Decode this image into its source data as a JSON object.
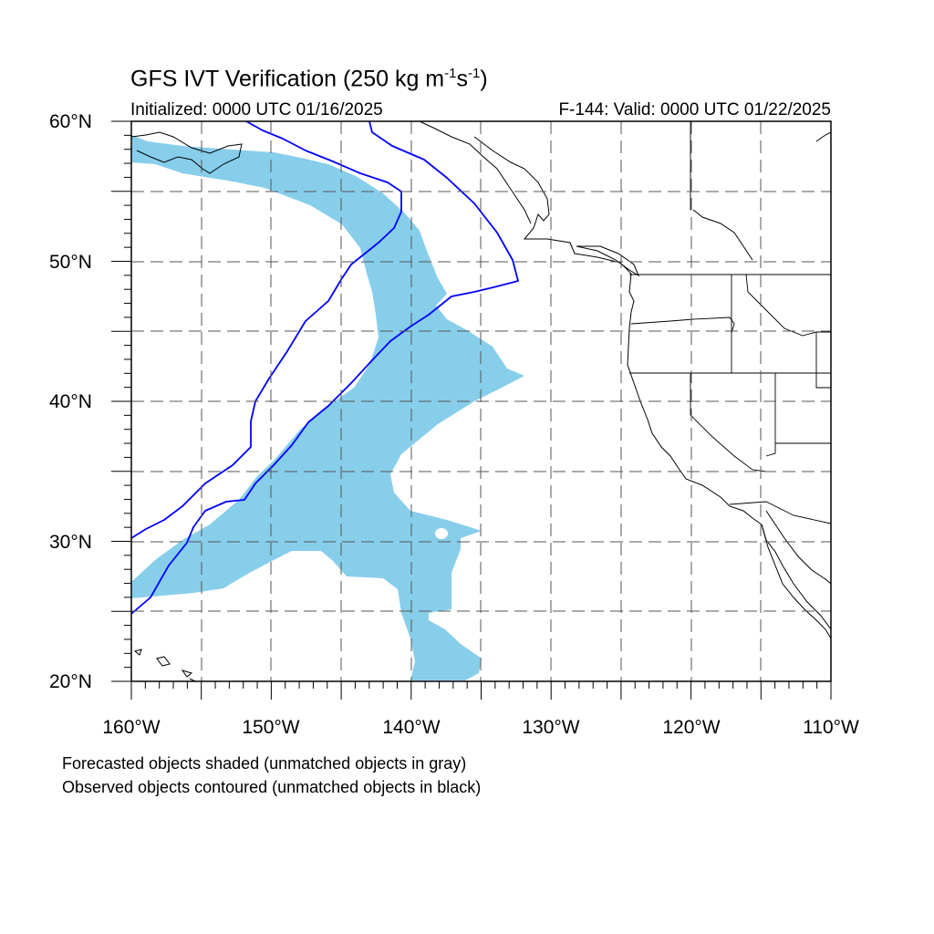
{
  "header": {
    "title_main": "GFS IVT Verification (250 kg m",
    "title_exp1": "-1",
    "title_mid": "s",
    "title_exp2": "-1",
    "title_end": ")",
    "initialized": "Initialized: 0000 UTC 01/16/2025",
    "valid": "F-144: Valid: 0000 UTC 01/22/2025"
  },
  "axes": {
    "lat_labels": [
      "60°N",
      "50°N",
      "40°N",
      "30°N",
      "20°N"
    ],
    "lon_labels": [
      "160°W",
      "150°W",
      "140°W",
      "130°W",
      "120°W",
      "110°W"
    ],
    "lat_range": [
      20,
      60
    ],
    "lon_range": [
      -160,
      -110
    ]
  },
  "legend": {
    "line1": "Forecasted objects shaded (unmatched objects in gray)",
    "line2": "Observed objects contoured (unmatched objects in black)"
  },
  "colors": {
    "forecast_fill": "#87ceeb",
    "observed_contour": "#0000ff",
    "coastline": "#000000",
    "grid": "#555555"
  }
}
